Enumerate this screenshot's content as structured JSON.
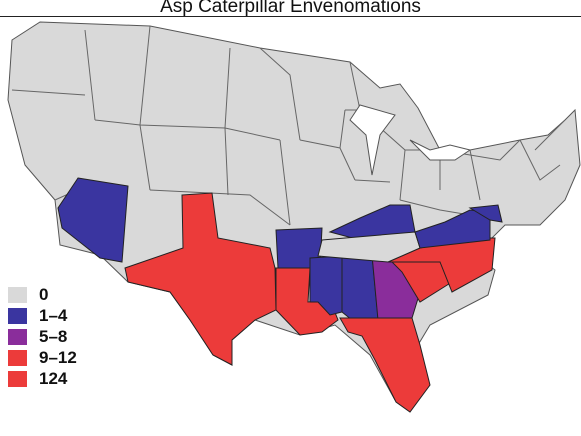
{
  "title": "Asp Caterpillar Envenomations",
  "colors": {
    "none": "#d9d9d9",
    "low": "#3a35a0",
    "mid": "#8a2d9b",
    "high": "#ec3b3a",
    "border": "#555555"
  },
  "legend": [
    {
      "label": "0",
      "color": "#d9d9d9"
    },
    {
      "label": "1–4",
      "color": "#3a35a0"
    },
    {
      "label": "5–8",
      "color": "#8a2d9b"
    },
    {
      "label": "9–12",
      "color": "#ec3b3a"
    },
    {
      "label": "124",
      "color": "#ec3b3a"
    }
  ],
  "states": {
    "Arizona": "1–4",
    "Arkansas": "1–4",
    "Mississippi": "1–4",
    "Alabama": "1–4",
    "Kentucky": "1–4",
    "Virginia": "1–4",
    "Maryland": "1–4",
    "Georgia": "5–8",
    "Texas": "9–12",
    "Louisiana": "9–12",
    "South Carolina": "9–12",
    "North Carolina": "9–12",
    "Florida": "124"
  }
}
